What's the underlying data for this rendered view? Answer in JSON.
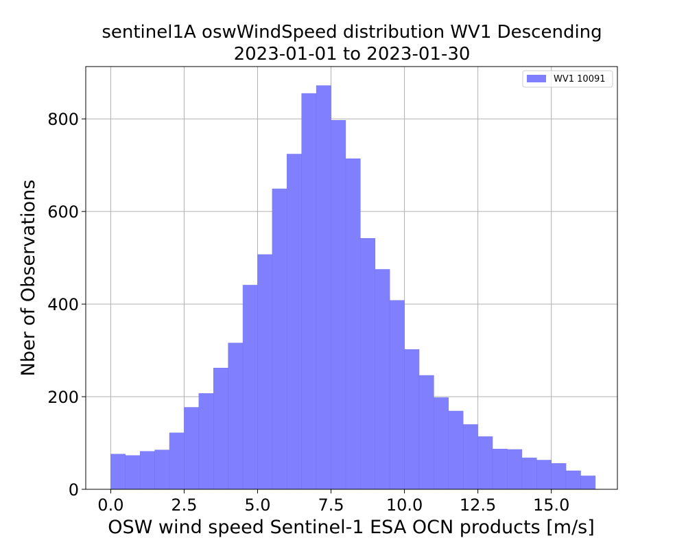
{
  "chart_data": {
    "type": "bar",
    "title_line1": "sentinel1A oswWindSpeed distribution WV1 Descending",
    "title_line2": "2023-01-01 to 2023-01-30",
    "xlabel": "OSW wind speed Sentinel-1 ESA OCN products [m/s]",
    "ylabel": "Nber of Observations",
    "xlim": [
      -0.85,
      17.25
    ],
    "ylim": [
      0,
      913
    ],
    "xticks": [
      0.0,
      2.5,
      5.0,
      7.5,
      10.0,
      12.5,
      15.0
    ],
    "xtick_labels": [
      "0.0",
      "2.5",
      "5.0",
      "7.5",
      "10.0",
      "12.5",
      "15.0"
    ],
    "yticks": [
      0,
      200,
      400,
      600,
      800
    ],
    "ytick_labels": [
      "0",
      "200",
      "400",
      "600",
      "800"
    ],
    "grid": true,
    "legend_position": "top-right",
    "series": [
      {
        "name": "WV1 10091",
        "color": "#8080ff",
        "bin_edges": [
          0.0,
          0.5,
          1.0,
          1.5,
          2.0,
          2.5,
          3.0,
          3.5,
          4.0,
          4.5,
          5.0,
          5.5,
          6.0,
          6.5,
          7.0,
          7.5,
          8.0,
          8.5,
          9.0,
          9.5,
          10.0,
          10.5,
          11.0,
          11.5,
          12.0,
          12.5,
          13.0,
          13.5,
          14.0,
          14.5,
          15.0,
          15.5,
          16.0,
          16.5
        ],
        "values": [
          76,
          73,
          82,
          85,
          122,
          177,
          207,
          262,
          316,
          441,
          507,
          649,
          724,
          855,
          872,
          797,
          714,
          542,
          475,
          408,
          302,
          246,
          198,
          169,
          140,
          114,
          87,
          86,
          68,
          63,
          56,
          40,
          29
        ]
      }
    ]
  }
}
